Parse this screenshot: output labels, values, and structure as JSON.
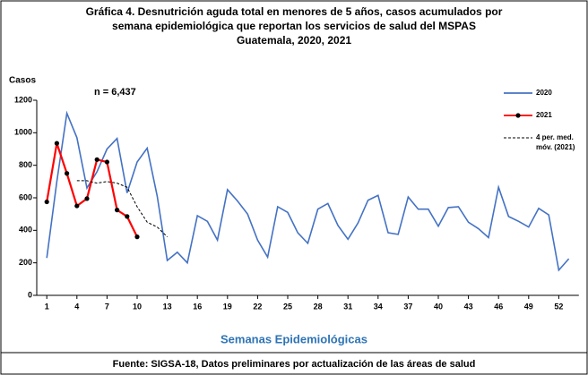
{
  "chart_data": {
    "type": "line",
    "title": [
      "Gráfica 4. Desnutrición aguda total en menores de 5 años, casos acumulados por",
      "semana epidemiológica que reportan los servicios de salud del MSPAS",
      "Guatemala, 2020, 2021"
    ],
    "y_label": "Casos",
    "annotation": "n = 6,437",
    "x_label": "Semanas Epidemiológicas",
    "source": "Fuente: SIGSA-18, Datos preliminares por actualización de las áreas de salud",
    "x": [
      1,
      2,
      3,
      4,
      5,
      6,
      7,
      8,
      9,
      10,
      11,
      12,
      13,
      14,
      15,
      16,
      17,
      18,
      19,
      20,
      21,
      22,
      23,
      24,
      25,
      26,
      27,
      28,
      29,
      30,
      31,
      32,
      33,
      34,
      35,
      36,
      37,
      38,
      39,
      40,
      41,
      42,
      43,
      44,
      45,
      46,
      47,
      48,
      49,
      50,
      51,
      52,
      53
    ],
    "series": [
      {
        "name": "2020",
        "color": "#4472c4",
        "style": "solid",
        "markers": false,
        "values": [
          230,
          700,
          1120,
          970,
          660,
          760,
          900,
          965,
          630,
          820,
          905,
          610,
          215,
          265,
          200,
          490,
          455,
          340,
          650,
          580,
          500,
          340,
          235,
          545,
          510,
          385,
          320,
          530,
          565,
          430,
          345,
          445,
          585,
          615,
          385,
          375,
          605,
          530,
          530,
          425,
          540,
          545,
          450,
          410,
          355,
          665,
          485,
          455,
          420,
          535,
          495,
          155,
          225
        ]
      },
      {
        "name": "2021",
        "color": "#ff0000",
        "style": "solid",
        "markers": true,
        "values": [
          575,
          935,
          750,
          550,
          595,
          835,
          820,
          525,
          485,
          360,
          null,
          null,
          null,
          null,
          null,
          null,
          null,
          null,
          null,
          null,
          null,
          null,
          null,
          null,
          null,
          null,
          null,
          null,
          null,
          null,
          null,
          null,
          null,
          null,
          null,
          null,
          null,
          null,
          null,
          null,
          null,
          null,
          null,
          null,
          null,
          null,
          null,
          null,
          null,
          null,
          null,
          null,
          null
        ]
      },
      {
        "name": "4 per. med. móv. (2021)",
        "color": "#000000",
        "style": "dashed",
        "markers": false,
        "values": [
          null,
          null,
          null,
          705,
          705,
          690,
          700,
          690,
          665,
          545,
          450,
          420,
          360,
          null,
          null,
          null,
          null,
          null,
          null,
          null,
          null,
          null,
          null,
          null,
          null,
          null,
          null,
          null,
          null,
          null,
          null,
          null,
          null,
          null,
          null,
          null,
          null,
          null,
          null,
          null,
          null,
          null,
          null,
          null,
          null,
          null,
          null,
          null,
          null,
          null,
          null,
          null,
          null
        ]
      }
    ],
    "xlim": [
      0,
      54
    ],
    "xticks": [
      1,
      4,
      7,
      10,
      13,
      16,
      19,
      22,
      25,
      28,
      31,
      34,
      37,
      40,
      43,
      46,
      49,
      52
    ],
    "ylim": [
      0,
      1200
    ],
    "yticks": [
      0,
      200,
      400,
      600,
      800,
      1000,
      1200
    ],
    "grid": false,
    "legend": "right"
  }
}
